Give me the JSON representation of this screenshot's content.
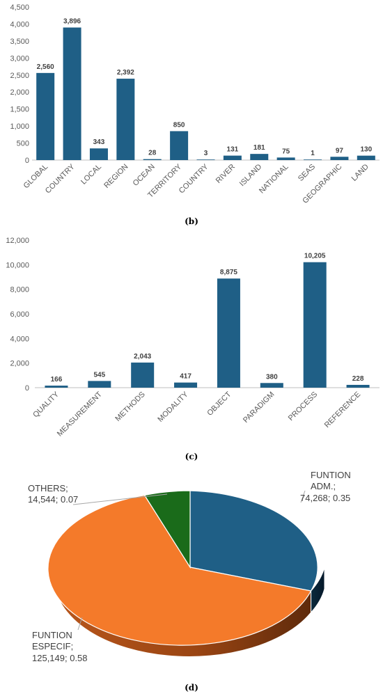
{
  "colors": {
    "bar": "#1f5f86",
    "axis": "#bfbfbf",
    "grid": "#d9d9d9",
    "pie_blue": "#1f5f86",
    "pie_orange": "#f47a2a",
    "pie_green": "#1a6b1a"
  },
  "chart_data": [
    {
      "type": "bar",
      "panel_label": "(b)",
      "categories": [
        "GLOBAL",
        "COUNTRY",
        "LOCAL",
        "REGION",
        "OCEAN",
        "TERRITORY",
        "COUNTRY",
        "RIVER",
        "ISLAND",
        "NATIONAL",
        "SEAS",
        "GEOGRAPHIC",
        "LAND"
      ],
      "values": [
        2560,
        3896,
        343,
        2392,
        28,
        850,
        3,
        131,
        181,
        75,
        1,
        97,
        130
      ],
      "value_labels": [
        "2,560",
        "3,896",
        "343",
        "2,392",
        "28",
        "850",
        "3",
        "131",
        "181",
        "75",
        "1",
        "97",
        "130"
      ],
      "yticks": [
        "0",
        "500",
        "1,000",
        "1,500",
        "2,000",
        "2,500",
        "3,000",
        "3,500",
        "4,000",
        "4,500"
      ],
      "ylim": [
        0,
        4500
      ],
      "grid": false
    },
    {
      "type": "bar",
      "panel_label": "(c)",
      "categories": [
        "QUALITY",
        "MEASUREMENT",
        "METHODS",
        "MODALITY",
        "OBJECT",
        "PARADIGM",
        "PROCESS",
        "REFERENCE"
      ],
      "values": [
        166,
        545,
        2043,
        417,
        8875,
        380,
        10205,
        228
      ],
      "value_labels": [
        "166",
        "545",
        "2,043",
        "417",
        "8,875",
        "380",
        "10,205",
        "228"
      ],
      "yticks": [
        "0",
        "2,000",
        "4,000",
        "6,000",
        "8,000",
        "10,000",
        "12,000"
      ],
      "ylim": [
        0,
        12000
      ],
      "grid": false
    },
    {
      "type": "pie",
      "panel_label": "(d)",
      "slices": [
        {
          "name": "FUNTION ADM.",
          "value": 74268,
          "share": 0.35,
          "label_lines": [
            "FUNTION",
            "ADM.;",
            "74,268; 0.35"
          ]
        },
        {
          "name": "FUNTION ESPECIF",
          "value": 125149,
          "share": 0.58,
          "label_lines": [
            "FUNTION",
            "ESPECIF;",
            "125,149; 0.58"
          ]
        },
        {
          "name": "OTHERS",
          "value": 14544,
          "share": 0.07,
          "label_lines": [
            "OTHERS;",
            "14,544; 0.07"
          ]
        }
      ],
      "style": "3d"
    }
  ]
}
